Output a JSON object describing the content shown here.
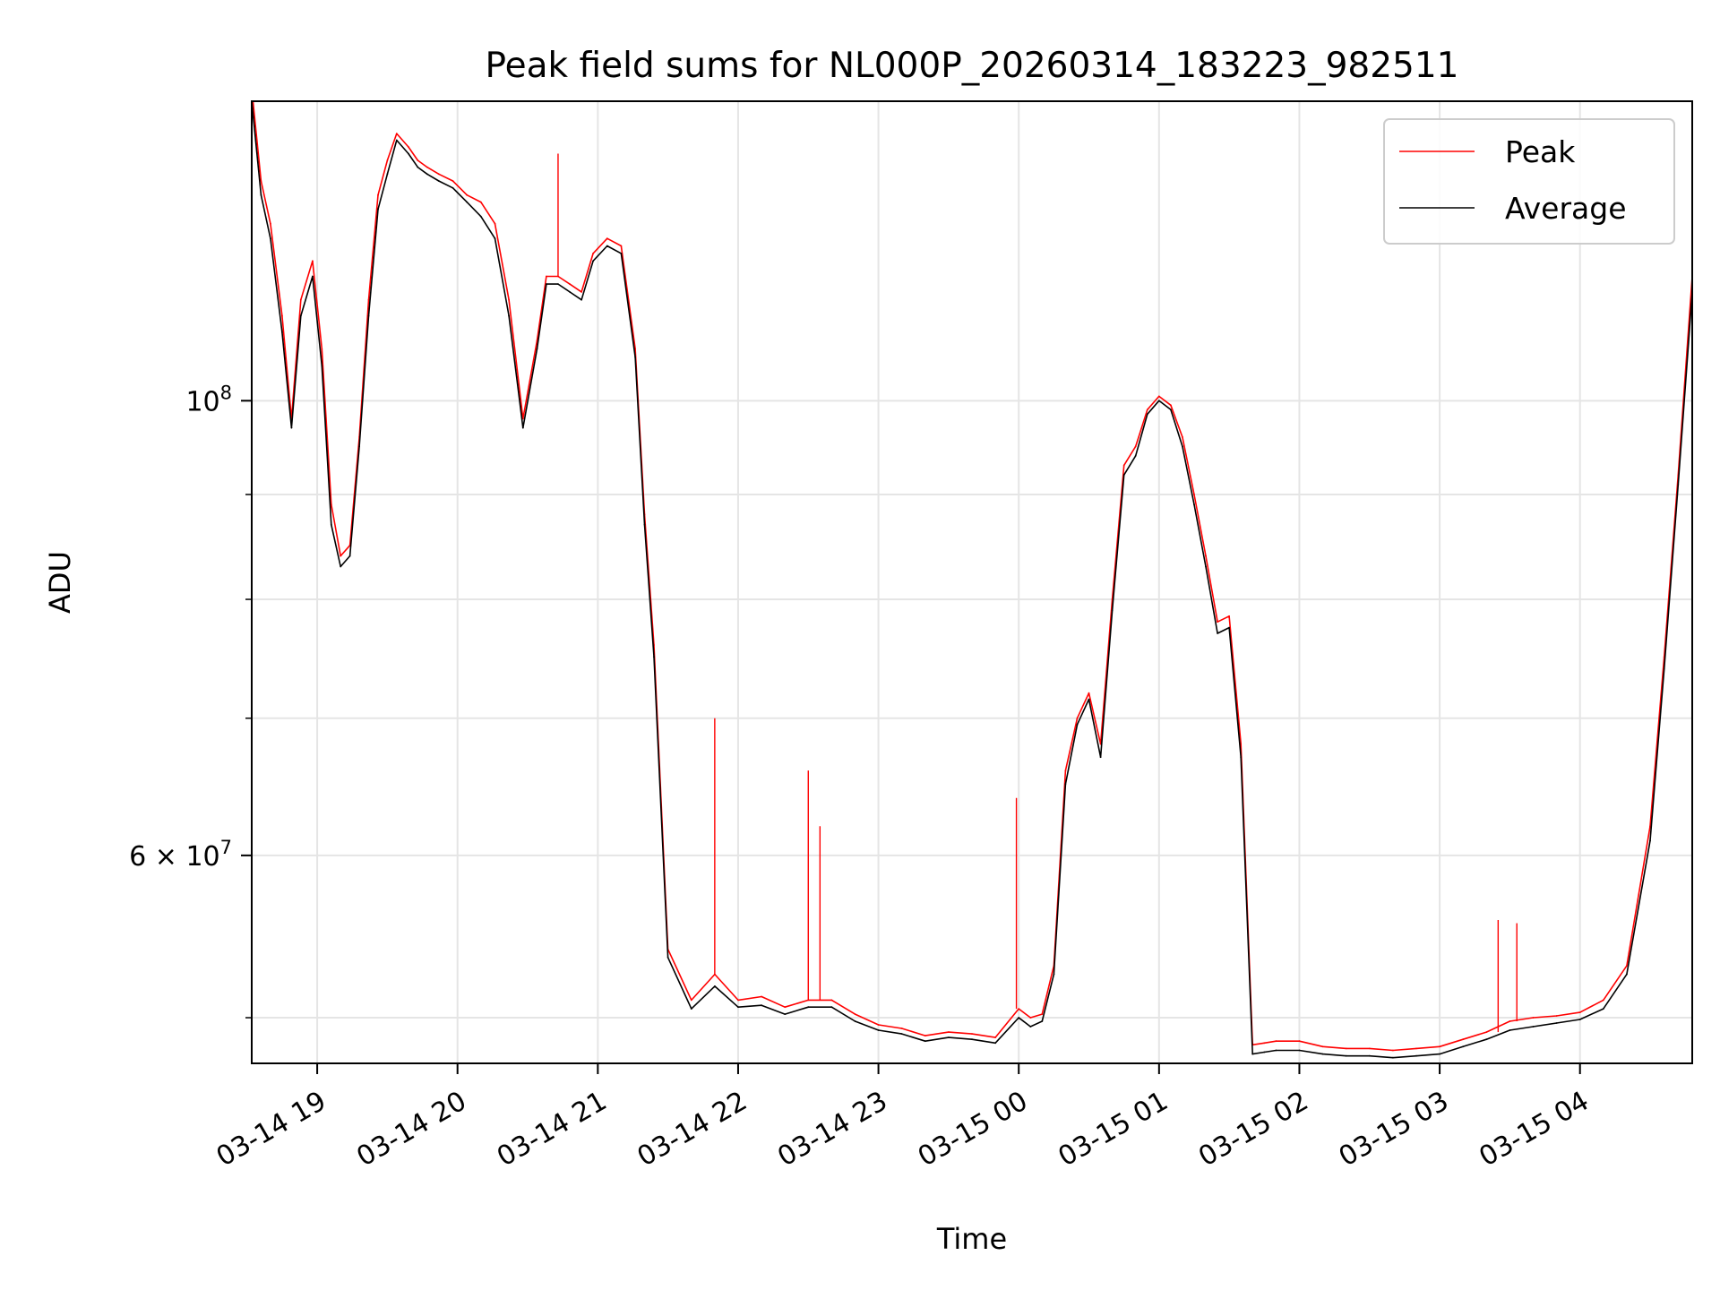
{
  "chart_data": {
    "type": "line",
    "title": "Peak field sums for NL000P_20260314_183223_982511",
    "xlabel": "Time",
    "ylabel": "ADU",
    "yscale": "log",
    "grid": true,
    "legend_position": "top-right",
    "xlim": [
      "2026-03-14 18:32",
      "2026-03-15 04:48"
    ],
    "ylim": [
      47500000,
      140000000
    ],
    "x_ticks": [
      "03-14 19",
      "03-14 20",
      "03-14 21",
      "03-14 22",
      "03-14 23",
      "03-15 00",
      "03-15 01",
      "03-15 02",
      "03-15 03",
      "03-15 04"
    ],
    "y_ticks": [
      {
        "value": 100000000,
        "base": "10",
        "exp": "8",
        "mult": ""
      },
      {
        "value": 60000000,
        "base": "10",
        "exp": "7",
        "mult": "6 × "
      }
    ],
    "series": [
      {
        "name": "Peak",
        "color": "#ff0000",
        "x": [
          "2026-03-14 18:32",
          "2026-03-14 18:36",
          "2026-03-14 18:40",
          "2026-03-14 18:45",
          "2026-03-14 18:49",
          "2026-03-14 18:53",
          "2026-03-14 18:58",
          "2026-03-14 19:02",
          "2026-03-14 19:06",
          "2026-03-14 19:10",
          "2026-03-14 19:14",
          "2026-03-14 19:18",
          "2026-03-14 19:22",
          "2026-03-14 19:26",
          "2026-03-14 19:30",
          "2026-03-14 19:34",
          "2026-03-14 19:39",
          "2026-03-14 19:43",
          "2026-03-14 19:47",
          "2026-03-14 19:52",
          "2026-03-14 19:58",
          "2026-03-14 20:04",
          "2026-03-14 20:10",
          "2026-03-14 20:16",
          "2026-03-14 20:22",
          "2026-03-14 20:28",
          "2026-03-14 20:34",
          "2026-03-14 20:38",
          "2026-03-14 20:43",
          "2026-03-14 20:48",
          "2026-03-14 20:53",
          "2026-03-14 20:58",
          "2026-03-14 21:04",
          "2026-03-14 21:10",
          "2026-03-14 21:16",
          "2026-03-14 21:20",
          "2026-03-14 21:24",
          "2026-03-14 21:30",
          "2026-03-14 21:40",
          "2026-03-14 21:50",
          "2026-03-14 22:00",
          "2026-03-14 22:10",
          "2026-03-14 22:20",
          "2026-03-14 22:30",
          "2026-03-14 22:40",
          "2026-03-14 22:50",
          "2026-03-14 23:00",
          "2026-03-14 23:10",
          "2026-03-14 23:20",
          "2026-03-14 23:30",
          "2026-03-14 23:40",
          "2026-03-14 23:50",
          "2026-03-15 00:00",
          "2026-03-15 00:05",
          "2026-03-15 00:10",
          "2026-03-15 00:15",
          "2026-03-15 00:20",
          "2026-03-15 00:25",
          "2026-03-15 00:30",
          "2026-03-15 00:35",
          "2026-03-15 00:40",
          "2026-03-15 00:45",
          "2026-03-15 00:50",
          "2026-03-15 00:55",
          "2026-03-15 01:00",
          "2026-03-15 01:05",
          "2026-03-15 01:10",
          "2026-03-15 01:15",
          "2026-03-15 01:20",
          "2026-03-15 01:25",
          "2026-03-15 01:30",
          "2026-03-15 01:35",
          "2026-03-15 01:40",
          "2026-03-15 01:45",
          "2026-03-15 01:50",
          "2026-03-15 02:00",
          "2026-03-15 02:10",
          "2026-03-15 02:20",
          "2026-03-15 02:30",
          "2026-03-15 02:40",
          "2026-03-15 02:50",
          "2026-03-15 03:00",
          "2026-03-15 03:10",
          "2026-03-15 03:20",
          "2026-03-15 03:30",
          "2026-03-15 03:40",
          "2026-03-15 03:50",
          "2026-03-15 04:00",
          "2026-03-15 04:10",
          "2026-03-15 04:20",
          "2026-03-15 04:30",
          "2026-03-15 04:36",
          "2026-03-15 04:42",
          "2026-03-15 04:48"
        ],
        "y": [
          142000000,
          128000000,
          122000000,
          110000000,
          98000000,
          112000000,
          117000000,
          106000000,
          89000000,
          84000000,
          85000000,
          96000000,
          112000000,
          126000000,
          131000000,
          135000000,
          133000000,
          131000000,
          130000000,
          129000000,
          128000000,
          126000000,
          125000000,
          122000000,
          112000000,
          98000000,
          107000000,
          115000000,
          115000000,
          114000000,
          113000000,
          118000000,
          120000000,
          119000000,
          106000000,
          88000000,
          76000000,
          54000000,
          51000000,
          52500000,
          51000000,
          51200000,
          50600000,
          51000000,
          51000000,
          50200000,
          49600000,
          49400000,
          49000000,
          49200000,
          49100000,
          48900000,
          50500000,
          50000000,
          50200000,
          53000000,
          66000000,
          70000000,
          72000000,
          68000000,
          80000000,
          93000000,
          95000000,
          99000000,
          100500000,
          99500000,
          96000000,
          90000000,
          84000000,
          78000000,
          78500000,
          68000000,
          48500000,
          48600000,
          48700000,
          48700000,
          48400000,
          48300000,
          48300000,
          48200000,
          48300000,
          48400000,
          48800000,
          49200000,
          49800000,
          50000000,
          50100000,
          50300000,
          51000000,
          53000000,
          62000000,
          75000000,
          92000000,
          115000000
        ],
        "spikes": [
          {
            "x": "2026-03-14 20:43",
            "y": 132000000
          },
          {
            "x": "2026-03-14 21:50",
            "y": 70000000
          },
          {
            "x": "2026-03-14 22:30",
            "y": 66000000
          },
          {
            "x": "2026-03-14 22:35",
            "y": 62000000
          },
          {
            "x": "2026-03-14 23:59",
            "y": 64000000
          },
          {
            "x": "2026-03-15 03:25",
            "y": 55800000
          },
          {
            "x": "2026-03-15 03:33",
            "y": 55600000
          }
        ]
      },
      {
        "name": "Average",
        "color": "#000000",
        "x": [
          "2026-03-14 18:32",
          "2026-03-14 18:36",
          "2026-03-14 18:40",
          "2026-03-14 18:45",
          "2026-03-14 18:49",
          "2026-03-14 18:53",
          "2026-03-14 18:58",
          "2026-03-14 19:02",
          "2026-03-14 19:06",
          "2026-03-14 19:10",
          "2026-03-14 19:14",
          "2026-03-14 19:18",
          "2026-03-14 19:22",
          "2026-03-14 19:26",
          "2026-03-14 19:30",
          "2026-03-14 19:34",
          "2026-03-14 19:39",
          "2026-03-14 19:43",
          "2026-03-14 19:47",
          "2026-03-14 19:52",
          "2026-03-14 19:58",
          "2026-03-14 20:04",
          "2026-03-14 20:10",
          "2026-03-14 20:16",
          "2026-03-14 20:22",
          "2026-03-14 20:28",
          "2026-03-14 20:34",
          "2026-03-14 20:38",
          "2026-03-14 20:43",
          "2026-03-14 20:48",
          "2026-03-14 20:53",
          "2026-03-14 20:58",
          "2026-03-14 21:04",
          "2026-03-14 21:10",
          "2026-03-14 21:16",
          "2026-03-14 21:20",
          "2026-03-14 21:24",
          "2026-03-14 21:30",
          "2026-03-14 21:40",
          "2026-03-14 21:50",
          "2026-03-14 22:00",
          "2026-03-14 22:10",
          "2026-03-14 22:20",
          "2026-03-14 22:30",
          "2026-03-14 22:40",
          "2026-03-14 22:50",
          "2026-03-14 23:00",
          "2026-03-14 23:10",
          "2026-03-14 23:20",
          "2026-03-14 23:30",
          "2026-03-14 23:40",
          "2026-03-14 23:50",
          "2026-03-15 00:00",
          "2026-03-15 00:05",
          "2026-03-15 00:10",
          "2026-03-15 00:15",
          "2026-03-15 00:20",
          "2026-03-15 00:25",
          "2026-03-15 00:30",
          "2026-03-15 00:35",
          "2026-03-15 00:40",
          "2026-03-15 00:45",
          "2026-03-15 00:50",
          "2026-03-15 00:55",
          "2026-03-15 01:00",
          "2026-03-15 01:05",
          "2026-03-15 01:10",
          "2026-03-15 01:15",
          "2026-03-15 01:20",
          "2026-03-15 01:25",
          "2026-03-15 01:30",
          "2026-03-15 01:35",
          "2026-03-15 01:40",
          "2026-03-15 01:45",
          "2026-03-15 01:50",
          "2026-03-15 02:00",
          "2026-03-15 02:10",
          "2026-03-15 02:20",
          "2026-03-15 02:30",
          "2026-03-15 02:40",
          "2026-03-15 02:50",
          "2026-03-15 03:00",
          "2026-03-15 03:10",
          "2026-03-15 03:20",
          "2026-03-15 03:30",
          "2026-03-15 03:40",
          "2026-03-15 03:50",
          "2026-03-15 04:00",
          "2026-03-15 04:10",
          "2026-03-15 04:20",
          "2026-03-15 04:30",
          "2026-03-15 04:36",
          "2026-03-15 04:42",
          "2026-03-15 04:48"
        ],
        "y": [
          140000000,
          126000000,
          120000000,
          108000000,
          97000000,
          110000000,
          115000000,
          104000000,
          87000000,
          83000000,
          84000000,
          95000000,
          110000000,
          124000000,
          129000000,
          134000000,
          132000000,
          130000000,
          129000000,
          128000000,
          127000000,
          125000000,
          123000000,
          120000000,
          110000000,
          97000000,
          106000000,
          114000000,
          114000000,
          113000000,
          112000000,
          117000000,
          119000000,
          118000000,
          105000000,
          87000000,
          75000000,
          53500000,
          50500000,
          51800000,
          50600000,
          50700000,
          50200000,
          50600000,
          50600000,
          49800000,
          49300000,
          49100000,
          48700000,
          48900000,
          48800000,
          48600000,
          50000000,
          49500000,
          49800000,
          52500000,
          65000000,
          69500000,
          71500000,
          67000000,
          79000000,
          92000000,
          94000000,
          98500000,
          100000000,
          99000000,
          95000000,
          89000000,
          83000000,
          77000000,
          77500000,
          67000000,
          48000000,
          48100000,
          48200000,
          48200000,
          48000000,
          47900000,
          47900000,
          47800000,
          47900000,
          48000000,
          48400000,
          48800000,
          49300000,
          49500000,
          49700000,
          49900000,
          50500000,
          52500000,
          61000000,
          74000000,
          91000000,
          113000000
        ]
      }
    ]
  }
}
